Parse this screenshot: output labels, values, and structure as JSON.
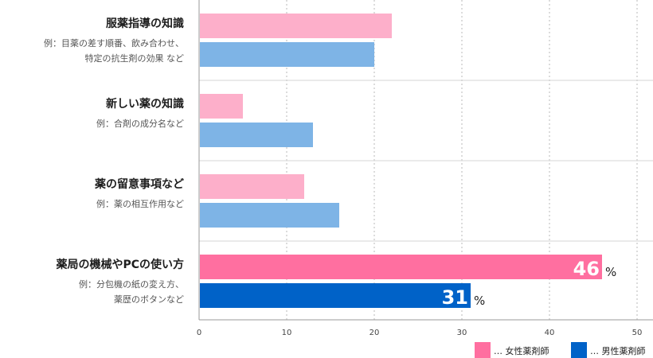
{
  "chart_data": {
    "type": "bar",
    "orientation": "horizontal",
    "xlim": [
      0,
      52
    ],
    "ticks": [
      0,
      10,
      20,
      30,
      40,
      50
    ],
    "grid": "vertical-dotted",
    "legend": "bottom-right",
    "categories": [
      {
        "title": "服薬指導の知識",
        "sub": [
          "例：目薬の差す順番、飲み合わせ、",
          "特定の抗生剤の効果 など"
        ]
      },
      {
        "title": "新しい薬の知識",
        "sub": [
          "例：合剤の成分名など"
        ]
      },
      {
        "title": "薬の留意事項など",
        "sub": [
          "例：薬の相互作用など"
        ]
      },
      {
        "title": "薬局の機械やPCの使い方",
        "sub": [
          "例：分包機の紙の変え方、",
          "薬歴のボタンなど"
        ]
      }
    ],
    "series": [
      {
        "name": "… 女性薬剤師",
        "values": [
          22,
          5,
          12,
          46
        ],
        "color": "#fdafca",
        "highlight_color": "#ff6fa0"
      },
      {
        "name": "… 男性薬剤師",
        "values": [
          20,
          13,
          16,
          31
        ],
        "color": "#7eb4e6",
        "highlight_color": "#0062c8"
      }
    ],
    "highlight_index": 3,
    "value_labels": [
      {
        "series": 0,
        "index": 3,
        "value": "46",
        "unit": "%"
      },
      {
        "series": 1,
        "index": 3,
        "value": "31",
        "unit": "%"
      }
    ]
  }
}
